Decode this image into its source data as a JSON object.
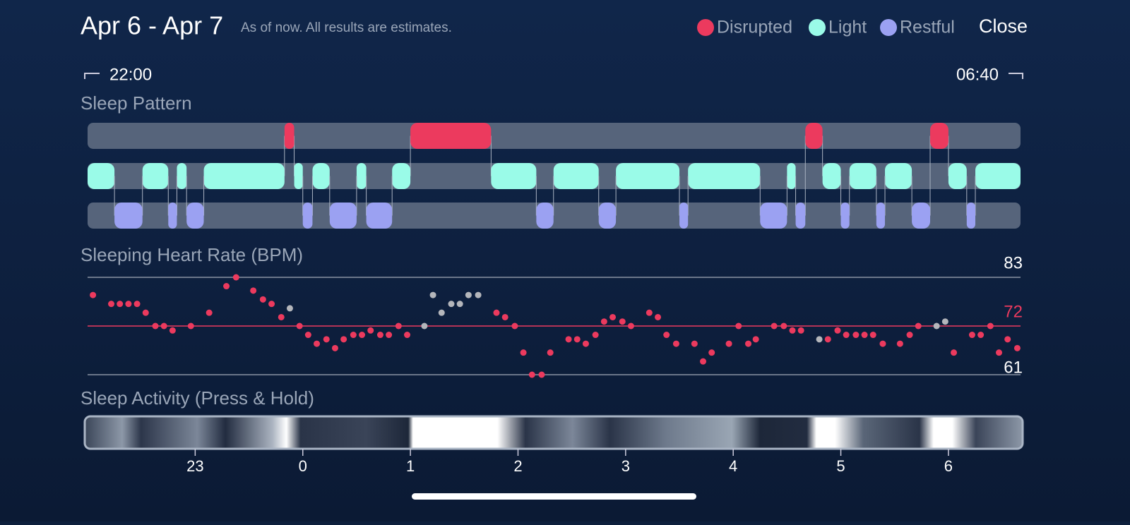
{
  "header": {
    "title": "Apr 6 - Apr 7",
    "subtitle": "As of now. All results are estimates.",
    "close": "Close"
  },
  "range": {
    "start_label": "22:00",
    "end_label": "06:40"
  },
  "xlim": [
    22,
    30.67
  ],
  "sleep_pattern": {
    "title": "Sleep Pattern",
    "rows": [
      {
        "name": "Disrupted",
        "color": "#ec3a5e",
        "segments": [
          [
            23.83,
            23.92
          ],
          [
            25.0,
            25.75
          ],
          [
            28.67,
            28.83
          ],
          [
            29.83,
            30.0
          ]
        ]
      },
      {
        "name": "Light",
        "color": "#9afbe8",
        "segments": [
          [
            22.0,
            22.25
          ],
          [
            22.51,
            22.75
          ],
          [
            22.83,
            22.92
          ],
          [
            23.08,
            23.83
          ],
          [
            23.92,
            24.0
          ],
          [
            24.09,
            24.25
          ],
          [
            24.5,
            24.59
          ],
          [
            24.83,
            25.0
          ],
          [
            25.75,
            26.17
          ],
          [
            26.33,
            26.75
          ],
          [
            26.91,
            27.5
          ],
          [
            27.58,
            28.25
          ],
          [
            28.5,
            28.58
          ],
          [
            28.83,
            29.0
          ],
          [
            29.08,
            29.33
          ],
          [
            29.41,
            29.66
          ],
          [
            30.0,
            30.17
          ],
          [
            30.25,
            30.67
          ]
        ]
      },
      {
        "name": "Restful",
        "color": "#9ba1f2",
        "segments": [
          [
            22.25,
            22.51
          ],
          [
            22.75,
            22.83
          ],
          [
            22.92,
            23.08
          ],
          [
            24.0,
            24.09
          ],
          [
            24.25,
            24.5
          ],
          [
            24.59,
            24.83
          ],
          [
            26.17,
            26.33
          ],
          [
            26.75,
            26.91
          ],
          [
            27.5,
            27.58
          ],
          [
            28.25,
            28.5
          ],
          [
            28.58,
            28.67
          ],
          [
            29.0,
            29.08
          ],
          [
            29.33,
            29.41
          ],
          [
            29.66,
            29.83
          ],
          [
            30.17,
            30.25
          ]
        ]
      }
    ]
  },
  "heart_rate": {
    "title": "Sleeping Heart Rate (BPM)",
    "ylim": [
      61,
      83
    ],
    "yticks": [
      61,
      83
    ],
    "average": 72,
    "average_color": "#ec3a5e",
    "series": [
      {
        "color": "#ec3a5e",
        "x": [
          22.05,
          22.22,
          22.3,
          22.38,
          22.46,
          22.54,
          22.63,
          22.71,
          22.79,
          22.96,
          23.13,
          23.29,
          23.38,
          23.54,
          23.63,
          23.71,
          23.8,
          23.97,
          24.05,
          24.13,
          24.22,
          24.3,
          24.38,
          24.47,
          24.55,
          24.63,
          24.72,
          24.8,
          24.89,
          24.97,
          25.8,
          25.88,
          25.97,
          26.05,
          26.13,
          26.22,
          26.3,
          26.47,
          26.55,
          26.63,
          26.72,
          26.8,
          26.88,
          26.97,
          27.05,
          27.22,
          27.3,
          27.38,
          27.47,
          27.64,
          27.72,
          27.8,
          27.96,
          28.05,
          28.14,
          28.21,
          28.38,
          28.47,
          28.55,
          28.63,
          28.88,
          28.97,
          29.05,
          29.14,
          29.22,
          29.3,
          29.39,
          29.55,
          29.64,
          29.72,
          30.05,
          30.22,
          30.3,
          30.39,
          30.47,
          30.55,
          30.64
        ],
        "values": [
          79,
          77,
          77,
          77,
          77,
          75,
          72,
          72,
          71,
          72,
          75,
          81,
          83,
          80,
          78,
          77,
          74,
          72,
          70,
          68,
          69,
          67,
          69,
          70,
          70,
          71,
          70,
          70,
          72,
          70,
          75,
          74,
          72,
          66,
          61,
          61,
          66,
          69,
          69,
          68,
          70,
          73,
          74,
          73,
          72,
          75,
          74,
          70,
          68,
          68,
          64,
          66,
          68,
          72,
          68,
          69,
          72,
          72,
          71,
          71,
          69,
          71,
          70,
          70,
          70,
          70,
          68,
          68,
          70,
          72,
          66,
          70,
          70,
          72,
          66,
          69,
          67
        ]
      },
      {
        "color": "#b4b6bb",
        "x": [
          23.88,
          25.13,
          25.21,
          25.29,
          25.38,
          25.46,
          25.54,
          25.63,
          28.8,
          29.89,
          29.97
        ],
        "values": [
          76,
          72,
          79,
          75,
          77,
          77,
          79,
          79,
          69,
          72,
          73
        ]
      }
    ]
  },
  "activity": {
    "title": "Sleep Activity (Press & Hold)",
    "xticks": [
      23,
      {
        "value": 24,
        "label": "0"
      },
      {
        "value": 25,
        "label": "1"
      },
      {
        "value": 26,
        "label": "2"
      },
      {
        "value": 27,
        "label": "3"
      },
      {
        "value": 28,
        "label": "4"
      },
      {
        "value": 29,
        "label": "5"
      },
      {
        "value": 30,
        "label": "6"
      }
    ]
  }
}
